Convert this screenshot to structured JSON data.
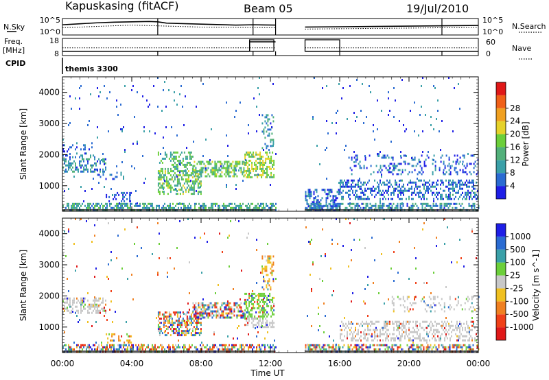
{
  "header": {
    "station": "Kapuskasing (fitACF)",
    "beam": "Beam 05",
    "date": "19/Jul/2010"
  },
  "labels": {
    "nsky": "N.Sky",
    "nsearch": "N.Search",
    "freq": "Freq.",
    "freq_unit": "[MHz]",
    "nave": "Nave",
    "cpid": "CPID",
    "cpid_value": "themis 3300",
    "ylabel": "Slant Range [km]",
    "xlabel": "Time UT"
  },
  "colors": {
    "power_scale": [
      "#1e1ee6",
      "#2a6bd2",
      "#3aa0a8",
      "#52b07a",
      "#6ccf3a",
      "#e6d22a",
      "#f0a020",
      "#f06018",
      "#e01818"
    ],
    "velocity_scale": [
      "#1e1ee6",
      "#2a6bd2",
      "#3aa0a8",
      "#6ccf3a",
      "#c8c8c8",
      "#f0c020",
      "#f08020",
      "#f04018",
      "#e01818"
    ],
    "ground_scatter": "#c8c8c8"
  },
  "chart_data": [
    {
      "type": "line",
      "panel": "noise",
      "ylabel": "N.Sky",
      "y2label": "N.Search",
      "yticks_left": [
        "10^5",
        "10^0"
      ],
      "x_range": [
        "00:00",
        "24:00"
      ],
      "data_gap": [
        "12:20",
        "14:00"
      ],
      "series": [
        {
          "name": "N.Sky",
          "x_hours": [
            0,
            1,
            2,
            3,
            4,
            5,
            5.5,
            6,
            8,
            10,
            11,
            12.3,
            14,
            16,
            18,
            20,
            22,
            24
          ],
          "values_log": [
            3.1,
            3.4,
            3.7,
            3.9,
            4.0,
            4.1,
            4.0,
            3.6,
            3.3,
            3.0,
            3.1,
            3.0,
            2.4,
            2.5,
            2.6,
            2.7,
            2.8,
            2.9
          ]
        },
        {
          "name": "N.Search",
          "x_hours": [
            0,
            2,
            4,
            6,
            8,
            10,
            12.3,
            14,
            16,
            18,
            20,
            22,
            24
          ],
          "values_log": [
            2.2,
            2.6,
            3.0,
            2.7,
            2.4,
            2.3,
            2.2,
            1.8,
            1.9,
            2.0,
            2.1,
            2.2,
            2.3
          ]
        }
      ]
    },
    {
      "type": "line",
      "panel": "frequency",
      "ylabel": "Freq. [MHz]",
      "y2label": "Nave",
      "yticks_left": [
        "18",
        "8"
      ],
      "yticks_right": [
        "60",
        "0"
      ],
      "series": [
        {
          "name": "Freq.",
          "x_hours": [
            0,
            10.8,
            10.8,
            12.3,
            14,
            16.0,
            16.0,
            24
          ],
          "values": [
            10.5,
            10.5,
            16,
            16,
            10.5,
            10.5,
            10.5,
            10.5
          ]
        },
        {
          "name": "Nave",
          "x_hours": [
            0,
            10.8,
            10.8,
            12.3,
            14,
            16.0,
            16.0,
            24
          ],
          "values": [
            30,
            30,
            30,
            30,
            30,
            30,
            30,
            30
          ]
        }
      ]
    },
    {
      "type": "heatmap",
      "panel": "power",
      "title": "",
      "xlabel": "",
      "ylabel": "Slant Range [km]",
      "colorbar_label": "Power [dB]",
      "colorbar_ticks": [
        4,
        8,
        12,
        16,
        20,
        24,
        28
      ],
      "ylim": [
        180,
        4500
      ],
      "yticks": [
        1000,
        2000,
        3000,
        4000
      ],
      "xticks": [
        "00:00",
        "04:00",
        "08:00",
        "12:00",
        "16:00",
        "20:00",
        "00:00"
      ],
      "regions": [
        {
          "x_hours": [
            0.0,
            2.5
          ],
          "range_km": [
            1450,
            1950
          ],
          "level": 8,
          "density": 0.45
        },
        {
          "x_hours": [
            0.0,
            2.0
          ],
          "range_km": [
            2000,
            2400
          ],
          "level": 5,
          "density": 0.15
        },
        {
          "x_hours": [
            2.0,
            3.5
          ],
          "range_km": [
            1250,
            1450
          ],
          "level": 5,
          "density": 0.25
        },
        {
          "x_hours": [
            2.5,
            4.0
          ],
          "range_km": [
            500,
            800
          ],
          "level": 4,
          "density": 0.25
        },
        {
          "x_hours": [
            5.5,
            8.0
          ],
          "range_km": [
            750,
            1500
          ],
          "level": 14,
          "density": 0.5
        },
        {
          "x_hours": [
            5.5,
            7.5
          ],
          "range_km": [
            1550,
            2100
          ],
          "level": 12,
          "density": 0.35
        },
        {
          "x_hours": [
            7.5,
            10.5
          ],
          "range_km": [
            1300,
            1800
          ],
          "level": 14,
          "density": 0.55
        },
        {
          "x_hours": [
            10.5,
            12.2
          ],
          "range_km": [
            1300,
            2100
          ],
          "level": 16,
          "density": 0.55
        },
        {
          "x_hours": [
            11.5,
            12.2
          ],
          "range_km": [
            2200,
            3300
          ],
          "level": 8,
          "density": 0.3
        },
        {
          "x_hours": [
            0.0,
            12.3
          ],
          "range_km": [
            200,
            450
          ],
          "level": 10,
          "density": 0.55
        },
        {
          "x_hours": [
            14.0,
            16.0
          ],
          "range_km": [
            200,
            900
          ],
          "level": 5,
          "density": 0.4
        },
        {
          "x_hours": [
            16.0,
            24.0
          ],
          "range_km": [
            600,
            1200
          ],
          "level": 6,
          "density": 0.4
        },
        {
          "x_hours": [
            16.5,
            24.0
          ],
          "range_km": [
            1400,
            2000
          ],
          "level": 5,
          "density": 0.2
        },
        {
          "x_hours": [
            14.0,
            24.0
          ],
          "range_km": [
            200,
            450
          ],
          "level": 8,
          "density": 0.5
        },
        {
          "x_hours": [
            0.0,
            24.0
          ],
          "range_km": [
            450,
            4500
          ],
          "level": 5,
          "density": 0.015
        }
      ]
    },
    {
      "type": "heatmap",
      "panel": "velocity",
      "title": "",
      "xlabel": "Time UT",
      "ylabel": "Slant Range [km]",
      "colorbar_label": "Velocity [m s^-1]",
      "colorbar_ticks": [
        "1000",
        "500",
        "100",
        "25",
        "-25",
        "-100",
        "-500",
        "-1000"
      ],
      "ylim": [
        180,
        4500
      ],
      "yticks": [
        1000,
        2000,
        3000,
        4000
      ],
      "xticks": [
        "00:00",
        "04:00",
        "08:00",
        "12:00",
        "16:00",
        "20:00",
        "00:00"
      ],
      "regions": [
        {
          "x_hours": [
            0.0,
            2.5
          ],
          "range_km": [
            1450,
            1950
          ],
          "kind": "ground",
          "density": 0.45
        },
        {
          "x_hours": [
            2.5,
            4.0
          ],
          "range_km": [
            500,
            800
          ],
          "kind": "negative",
          "density": 0.25
        },
        {
          "x_hours": [
            5.5,
            8.0
          ],
          "range_km": [
            750,
            1500
          ],
          "kind": "mixed",
          "density": 0.5
        },
        {
          "x_hours": [
            7.5,
            10.5
          ],
          "range_km": [
            1300,
            1800
          ],
          "kind": "mixed",
          "density": 0.55
        },
        {
          "x_hours": [
            10.5,
            12.2
          ],
          "range_km": [
            1300,
            2100
          ],
          "kind": "positive",
          "density": 0.5
        },
        {
          "x_hours": [
            11.5,
            12.2
          ],
          "range_km": [
            2200,
            3300
          ],
          "kind": "negative",
          "density": 0.3
        },
        {
          "x_hours": [
            10.5,
            12.2
          ],
          "range_km": [
            1000,
            1300
          ],
          "kind": "ground",
          "density": 0.45
        },
        {
          "x_hours": [
            0.0,
            12.3
          ],
          "range_km": [
            200,
            450
          ],
          "kind": "mixed",
          "density": 0.55
        },
        {
          "x_hours": [
            16.0,
            24.0
          ],
          "range_km": [
            600,
            1200
          ],
          "kind": "ground",
          "density": 0.4
        },
        {
          "x_hours": [
            19.0,
            24.0
          ],
          "range_km": [
            1500,
            2000
          ],
          "kind": "ground",
          "density": 0.2
        },
        {
          "x_hours": [
            14.0,
            24.0
          ],
          "range_km": [
            200,
            450
          ],
          "kind": "mixed",
          "density": 0.5
        },
        {
          "x_hours": [
            0.0,
            24.0
          ],
          "range_km": [
            450,
            4500
          ],
          "kind": "mixed",
          "density": 0.015
        }
      ]
    }
  ]
}
